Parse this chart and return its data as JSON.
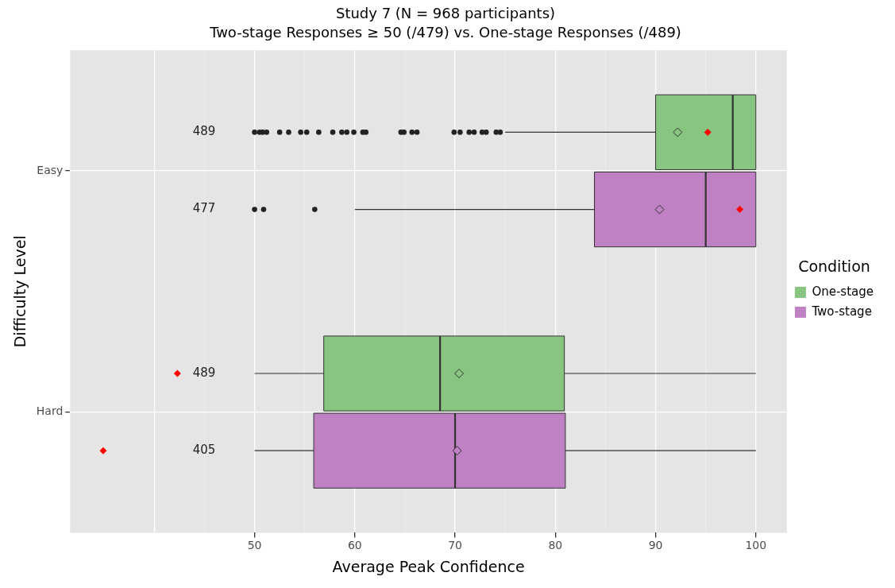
{
  "chart_data": {
    "type": "box",
    "orientation": "horizontal",
    "title": "Study 7 (N = 968 participants)",
    "subtitle": "Two-stage Responses ≥ 50 (/479) vs. One-stage Responses (/489)",
    "xlabel": "Average Peak Confidence",
    "ylabel": "Difficulty Level",
    "legend_title": "Condition",
    "legend": "right",
    "grid": true,
    "categories": [
      "Easy",
      "Hard"
    ],
    "xlim": [
      31.6,
      103.1
    ],
    "xticks": [
      {
        "value": 40,
        "label": null
      },
      50,
      60,
      70,
      80,
      90,
      100
    ],
    "series": [
      {
        "name": "One-stage",
        "color": "#88c580",
        "value_labels": [
          "489",
          "489"
        ],
        "boxes": [
          {
            "low": 75,
            "q1": 90,
            "median": 97.7,
            "q3": 100,
            "high": 100,
            "mean": 92.2,
            "outliers": [
              50,
              50.5,
              50.8,
              51.2,
              52.5,
              53.4,
              54.6,
              55.2,
              56.4,
              57.8,
              58.7,
              59.2,
              59.9,
              60.8,
              61.1,
              64.6,
              64.9,
              65.7,
              66.2,
              69.9,
              70.5,
              71.4,
              71.9,
              72.7,
              73.1,
              74.1,
              74.5
            ]
          },
          {
            "low": 50,
            "q1": 56.9,
            "median": 68.5,
            "q3": 80.9,
            "high": 100,
            "mean": 70.4
          }
        ]
      },
      {
        "name": "Two-stage",
        "color": "#c080c4",
        "value_labels": [
          "477",
          "405"
        ],
        "boxes": [
          {
            "low": 60,
            "q1": 83.9,
            "median": 95,
            "q3": 100,
            "high": 100,
            "mean": 90.4,
            "outliers": [
              50,
              50.9,
              56
            ]
          },
          {
            "low": 50,
            "q1": 55.9,
            "median": 70,
            "q3": 81,
            "high": 100,
            "mean": 70.2
          }
        ]
      },
      {
        "type": "scatter",
        "color": "#ff0000",
        "marker": "diamond",
        "values": [
          95.2,
          42.3
        ]
      },
      {
        "type": "scatter",
        "color": "#ff0000",
        "marker": "diamond",
        "values": [
          98.4,
          34.9
        ]
      }
    ]
  }
}
